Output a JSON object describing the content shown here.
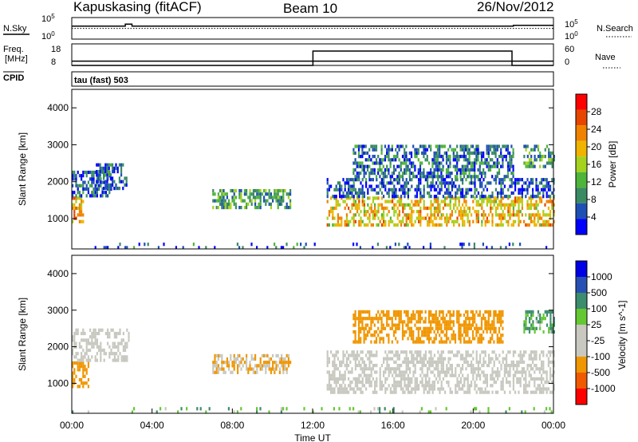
{
  "header": {
    "station": "Kapuskasing (fitACF)",
    "beam": "Beam 10",
    "date": "26/Nov/2012"
  },
  "side_labels": {
    "nsky": "N.Sky",
    "nsearch": "N.Search",
    "freq_line1": "Freq.",
    "freq_line2": "[MHz]",
    "nave": "Nave",
    "cpid": "CPID",
    "cpid_value": "tau (fast) 503"
  },
  "strip_ticks": {
    "noise_left": [
      "10^5",
      "10^0"
    ],
    "noise_right": [
      "10^5",
      "10^0"
    ],
    "freq_left": [
      "18",
      "8"
    ],
    "nave_right": [
      "60",
      "0"
    ]
  },
  "colors": {
    "power": [
      "#0000ff",
      "#1e4fb4",
      "#3a8a64",
      "#4fb43a",
      "#a4d21e",
      "#f0b400",
      "#f08200",
      "#e64600",
      "#ff0000"
    ],
    "velocity": [
      "#ff0000",
      "#f05a00",
      "#f09600",
      "#c8c8c0",
      "#c8c8c0",
      "#64c832",
      "#3c8c6e",
      "#2850b4",
      "#0000e6"
    ],
    "ground_scatter": "#c8c8c0"
  },
  "chart_data": [
    {
      "type": "line",
      "title": "Kapuskasing (fitACF)",
      "series": [
        {
          "name": "N.Sky",
          "x": [
            "00:00",
            "01:00",
            "02:00",
            "02:40",
            "03:00",
            "06:00",
            "10:00",
            "14:00",
            "18:00",
            "21:50",
            "22:00",
            "24:00"
          ],
          "y": [
            1000,
            1000,
            1000,
            3000,
            1000,
            1000,
            1000,
            1000,
            1000,
            1000,
            1600,
            1600
          ]
        },
        {
          "name": "N.Search",
          "x": [
            "00:00",
            "12:00",
            "16:00",
            "24:00"
          ],
          "y": [
            300,
            300,
            300,
            300
          ]
        }
      ],
      "xlim": [
        "00:00",
        "24:00"
      ]
    },
    {
      "type": "line",
      "series": [
        {
          "name": "Freq.",
          "x": [
            "00:00",
            "12:00",
            "21:55",
            "24:00"
          ],
          "y": [
            10,
            10,
            10,
            10
          ]
        },
        {
          "name": "Nave",
          "x": [
            "00:00",
            "12:00",
            "12:01",
            "21:55",
            "21:56",
            "24:00"
          ],
          "y": [
            0,
            0,
            40,
            40,
            0,
            0
          ]
        }
      ],
      "xlim": [
        "00:00",
        "24:00"
      ]
    },
    {
      "type": "heatmap",
      "quantity": "Power",
      "xlabel": "",
      "ylabel": "Slant Range [km]",
      "x_ticks": [
        "00:00",
        "04:00",
        "08:00",
        "12:00",
        "16:00",
        "20:00",
        "00:00"
      ],
      "y_ticks": [
        "1000",
        "2000",
        "3000",
        "4000"
      ],
      "ylim": [
        180,
        4500
      ],
      "colorbar_label": "Power [dB]",
      "colorbar_ticks": [
        "4",
        "8",
        "12",
        "16",
        "20",
        "24",
        "28"
      ],
      "regions": [
        {
          "t_start": 0.0,
          "t_end": 0.6,
          "r_low": 900,
          "r_high": 1600,
          "power_db": 24
        },
        {
          "t_start": 0.0,
          "t_end": 2.0,
          "r_low": 1600,
          "r_high": 2300,
          "power_db": 6
        },
        {
          "t_start": 1.2,
          "t_end": 2.7,
          "r_low": 1800,
          "r_high": 2500,
          "power_db": 6
        },
        {
          "t_start": 7.0,
          "t_end": 10.9,
          "r_low": 1300,
          "r_high": 1800,
          "power_db": 12
        },
        {
          "t_start": 12.7,
          "t_end": 24.0,
          "r_low": 800,
          "r_high": 1600,
          "power_db": 22
        },
        {
          "t_start": 12.7,
          "t_end": 24.0,
          "r_low": 1600,
          "r_high": 2100,
          "power_db": 6
        },
        {
          "t_start": 14.0,
          "t_end": 22.0,
          "r_low": 2100,
          "r_high": 3000,
          "power_db": 8
        },
        {
          "t_start": 22.5,
          "t_end": 24.0,
          "r_low": 2400,
          "r_high": 3000,
          "power_db": 12
        },
        {
          "t_start": 0.0,
          "t_end": 24.0,
          "r_low": 180,
          "r_high": 350,
          "power_db": 6
        }
      ]
    },
    {
      "type": "heatmap",
      "quantity": "Velocity",
      "xlabel": "Time UT",
      "ylabel": "Slant Range [km]",
      "x_ticks": [
        "00:00",
        "04:00",
        "08:00",
        "12:00",
        "16:00",
        "20:00",
        "00:00"
      ],
      "y_ticks": [
        "1000",
        "2000",
        "3000",
        "4000"
      ],
      "ylim": [
        180,
        4500
      ],
      "colorbar_label": "Velocity [m s^-1]",
      "colorbar_ticks": [
        "1000",
        "500",
        "100",
        "25",
        "-25",
        "-100",
        "-500",
        "-1000"
      ],
      "regions": [
        {
          "t_start": 0.0,
          "t_end": 0.8,
          "r_low": 900,
          "r_high": 1600,
          "velocity": -300
        },
        {
          "t_start": 0.0,
          "t_end": 2.8,
          "r_low": 1600,
          "r_high": 2500,
          "velocity": 0
        },
        {
          "t_start": 7.0,
          "t_end": 10.9,
          "r_low": 1300,
          "r_high": 1800,
          "velocity": -100
        },
        {
          "t_start": 12.7,
          "t_end": 24.0,
          "r_low": 800,
          "r_high": 1900,
          "velocity": 0
        },
        {
          "t_start": 14.0,
          "t_end": 21.5,
          "r_low": 2100,
          "r_high": 3000,
          "velocity": -200
        },
        {
          "t_start": 22.5,
          "t_end": 24.0,
          "r_low": 2400,
          "r_high": 3000,
          "velocity": 100
        },
        {
          "t_start": 0.0,
          "t_end": 24.0,
          "r_low": 180,
          "r_high": 350,
          "velocity": 80
        }
      ]
    }
  ]
}
